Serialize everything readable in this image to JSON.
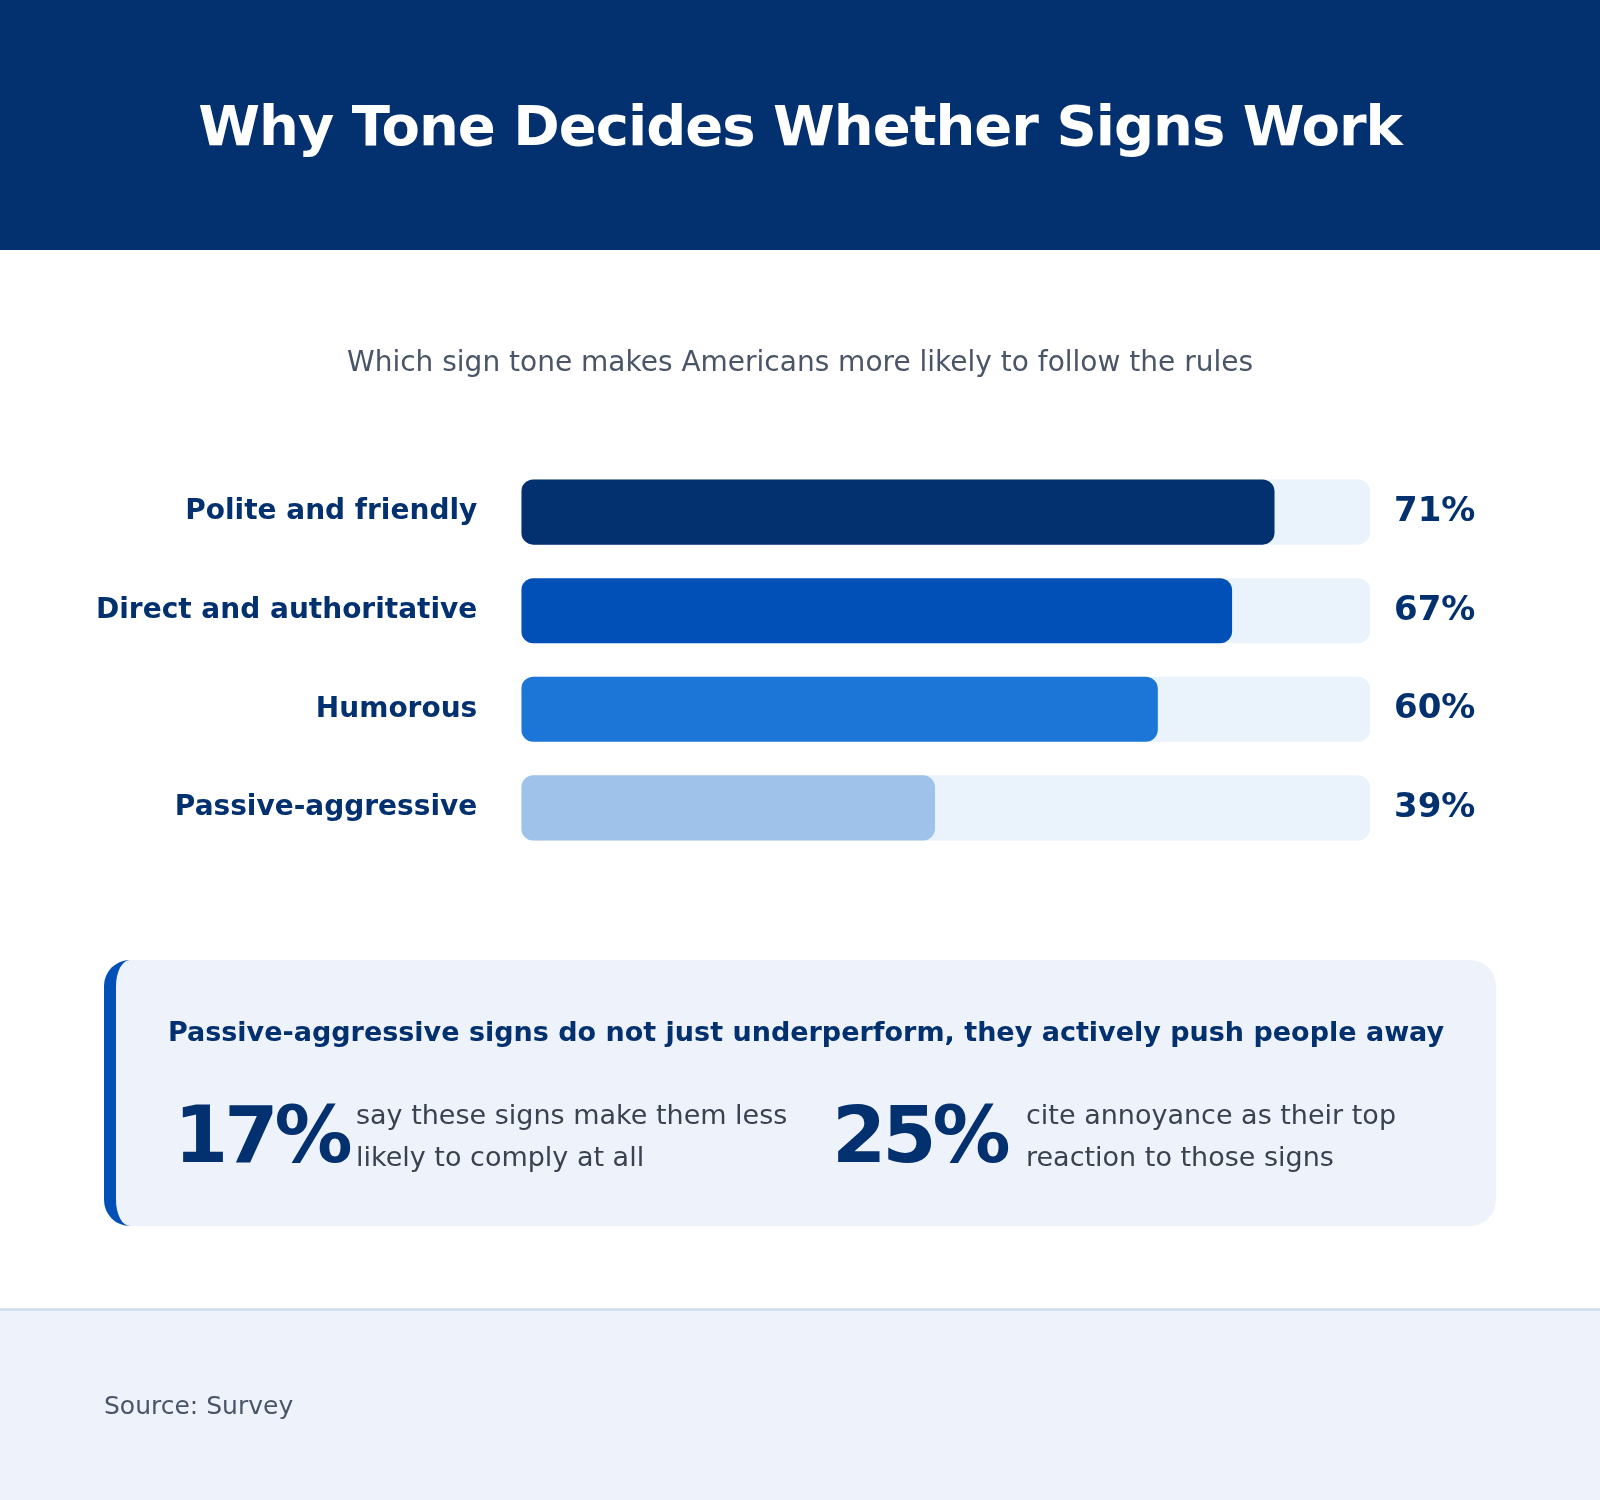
{
  "chart_data": {
    "type": "bar",
    "orientation": "horizontal",
    "title": "Why Tone Decides Whether Signs Work",
    "subtitle": "Which sign tone makes Americans more likely to follow the rules",
    "categories": [
      "Polite and friendly",
      "Direct and authoritative",
      "Humorous",
      "Passive-aggressive"
    ],
    "values": [
      71,
      67,
      60,
      39
    ],
    "colors": [
      "#03306f",
      "#0050b8",
      "#1c76d8",
      "#9fc2ea"
    ],
    "value_labels": [
      "71%",
      "67%",
      "60%",
      "39%"
    ],
    "tick_labels": "y",
    "annotations": [
      "Passive-aggressive signs do not just underperform, they actively push people away",
      "17%",
      "say these signs make them less likely to comply at all",
      "25%",
      "cite annoyance as their top reaction to those signs",
      "Source: Survey"
    ]
  }
}
